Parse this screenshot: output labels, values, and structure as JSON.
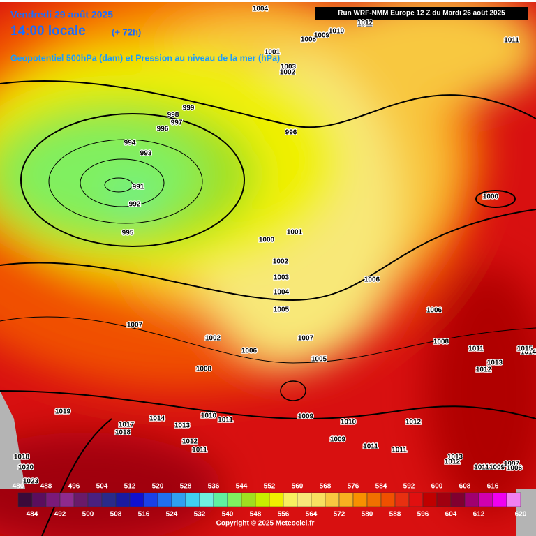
{
  "header": {
    "date": "Vendredi 29 août 2025",
    "time": "14:00 locale",
    "lead": "(+ 72h)",
    "subtitle": "Geopotentiel 500hPa (dam) et Pression au niveau de la mer (hPa)",
    "run": "Run WRF-NMM Europe 12 Z du Mardi 26 août 2025"
  },
  "isobar_labels": [
    1004,
    1008,
    1009,
    1010,
    1011,
    1012,
    1011,
    1001,
    1003,
    1002,
    999,
    998,
    997,
    996,
    994,
    993,
    991,
    992,
    995,
    996,
    1000,
    1001,
    1002,
    1003,
    1004,
    1005,
    1000,
    1007,
    1002,
    1006,
    1008,
    1007,
    1005,
    1006,
    1006,
    1008,
    1011,
    1013,
    1012,
    1014,
    1015,
    1019,
    1017,
    1018,
    1014,
    1013,
    1012,
    1011,
    1010,
    1011,
    1009,
    1010,
    1009,
    1011,
    1011,
    1012,
    1013,
    1012,
    1011,
    1009,
    1007,
    1006,
    1018,
    1020,
    1023
  ],
  "legend": {
    "values": [
      480,
      484,
      488,
      492,
      496,
      500,
      504,
      508,
      512,
      516,
      520,
      524,
      528,
      532,
      536,
      540,
      544,
      548,
      552,
      556,
      560,
      564,
      568,
      572,
      576,
      580,
      584,
      588,
      592,
      596,
      600,
      604,
      608,
      612,
      616,
      620
    ],
    "colors": [
      "#3a0a3a",
      "#5a0e5e",
      "#7a1a7a",
      "#8e2a8e",
      "#6a1a6a",
      "#4a2080",
      "#2a2a8a",
      "#1a1aa0",
      "#1010d0",
      "#1a40e8",
      "#2070f0",
      "#30a0f0",
      "#40d0f0",
      "#70f0e0",
      "#60f0a0",
      "#80f060",
      "#a0e020",
      "#c8f000",
      "#f0f000",
      "#f8f060",
      "#f8e878",
      "#f8e060",
      "#f8c840",
      "#f8b020",
      "#f89000",
      "#f07000",
      "#f05000",
      "#e83010",
      "#e01010",
      "#c00000",
      "#a00010",
      "#800030",
      "#a00070",
      "#d000b0",
      "#f000f0",
      "#f080f0"
    ]
  },
  "footer": {
    "copyright": "Copyright © 2025 Meteociel.fr"
  }
}
